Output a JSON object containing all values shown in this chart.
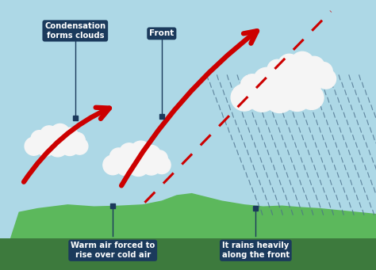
{
  "bg_sky_color": "#add8e6",
  "bg_ground_color": "#5cb85c",
  "bg_dark_ground_color": "#3d7a3d",
  "label_box_color": "#1b3a5c",
  "label_text_color": "#ffffff",
  "arrow_color": "#cc0000",
  "front_line_color": "#cc0000",
  "rain_color": "#4a6e8a",
  "cloud_color": "#f5f5f5",
  "cloud_shadow_color": "#e0e8ef",
  "label_condensation": "Condensation\nforms clouds",
  "label_front": "Front",
  "label_warm_air": "Warm air forced to\nrise over cold air",
  "label_rain": "It rains heavily\nalong the front",
  "figsize": [
    4.74,
    3.41
  ],
  "dpi": 100
}
